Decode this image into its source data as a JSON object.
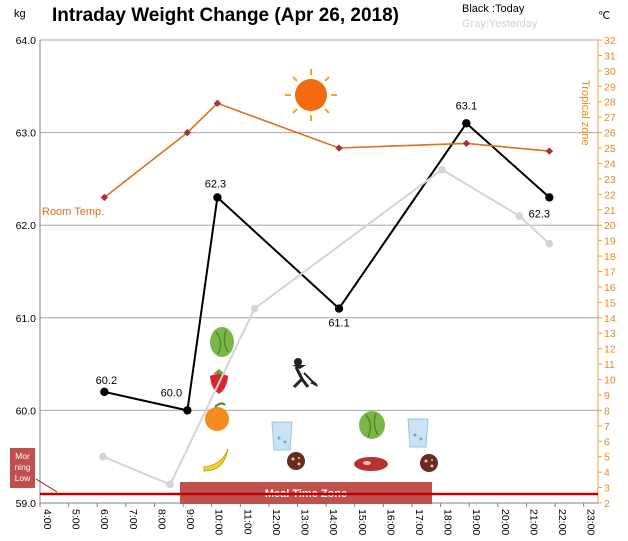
{
  "header": {
    "left_unit": "kg",
    "title": "Intraday Weight Change (Apr 26, 2018)",
    "right_unit": "℃",
    "legend_today": "Black :Today",
    "legend_yesterday": "Gray:Yesterday"
  },
  "annotations": {
    "room_temp": "Room Temp.",
    "tropical_zone": "Tropical zone",
    "meal_zone": "Meal Time Zone",
    "morning_low": [
      "Mor",
      "ning",
      "Low"
    ]
  },
  "icons": [
    "sun-icon",
    "lettuce-icon",
    "strawberry-icon",
    "orange-icon",
    "banana-icon",
    "water-glass-icon",
    "cookie-icon",
    "person-digging-icon",
    "steak-icon"
  ],
  "colors": {
    "today": "#000000",
    "yesterday": "#d4d4d4",
    "temperature": "#e0701a",
    "temp_marker": "#a0363a",
    "meal_zone": "#c0504d",
    "right_axis": "#e8a33d",
    "gridline": "#a6a6a6"
  },
  "chart_data": {
    "type": "line",
    "title": "Intraday Weight Change (Apr 26, 2018)",
    "x_ticks": [
      "4:00",
      "5:00",
      "6:00",
      "7:00",
      "8:00",
      "9:00",
      "10:00",
      "11:00",
      "12:00",
      "13:00",
      "14:00",
      "15:00",
      "16:00",
      "17:00",
      "18:00",
      "19:00",
      "20:00",
      "21:00",
      "22:00",
      "23:00"
    ],
    "xlim": [
      4,
      23.5
    ],
    "left_axis": {
      "label": "kg",
      "ylim": [
        59.0,
        64.0
      ],
      "ticks": [
        "59.0",
        "60.0",
        "61.0",
        "62.0",
        "63.0",
        "64.0"
      ]
    },
    "right_axis": {
      "label": "℃",
      "ylim": [
        2,
        32
      ],
      "ticks": [
        "2",
        "3",
        "4",
        "5",
        "6",
        "7",
        "8",
        "9",
        "10",
        "11",
        "12",
        "13",
        "14",
        "15",
        "16",
        "17",
        "18",
        "19",
        "20",
        "21",
        "22",
        "23",
        "24",
        "25",
        "26",
        "27",
        "28",
        "29",
        "30",
        "31",
        "32"
      ]
    },
    "grid": true,
    "series": [
      {
        "name": "Today",
        "axis": "left",
        "x": [
          6.25,
          9.15,
          10.2,
          14.45,
          18.9,
          21.8
        ],
        "y": [
          60.2,
          60.0,
          62.3,
          61.1,
          63.1,
          62.3
        ],
        "labels": [
          "60.2",
          "60.0",
          "62.3",
          "61.1",
          "63.1",
          "62.3"
        ]
      },
      {
        "name": "Yesterday",
        "axis": "left",
        "x": [
          6.2,
          8.55,
          11.5,
          18.05,
          20.75,
          21.8
        ],
        "y": [
          59.5,
          59.2,
          61.1,
          62.6,
          62.1,
          61.8
        ]
      },
      {
        "name": "Room Temp.",
        "axis": "right",
        "x": [
          6.25,
          9.15,
          10.2,
          14.45,
          18.9,
          21.8
        ],
        "y": [
          21.8,
          26.0,
          27.9,
          25.0,
          25.3,
          24.8
        ]
      }
    ]
  }
}
